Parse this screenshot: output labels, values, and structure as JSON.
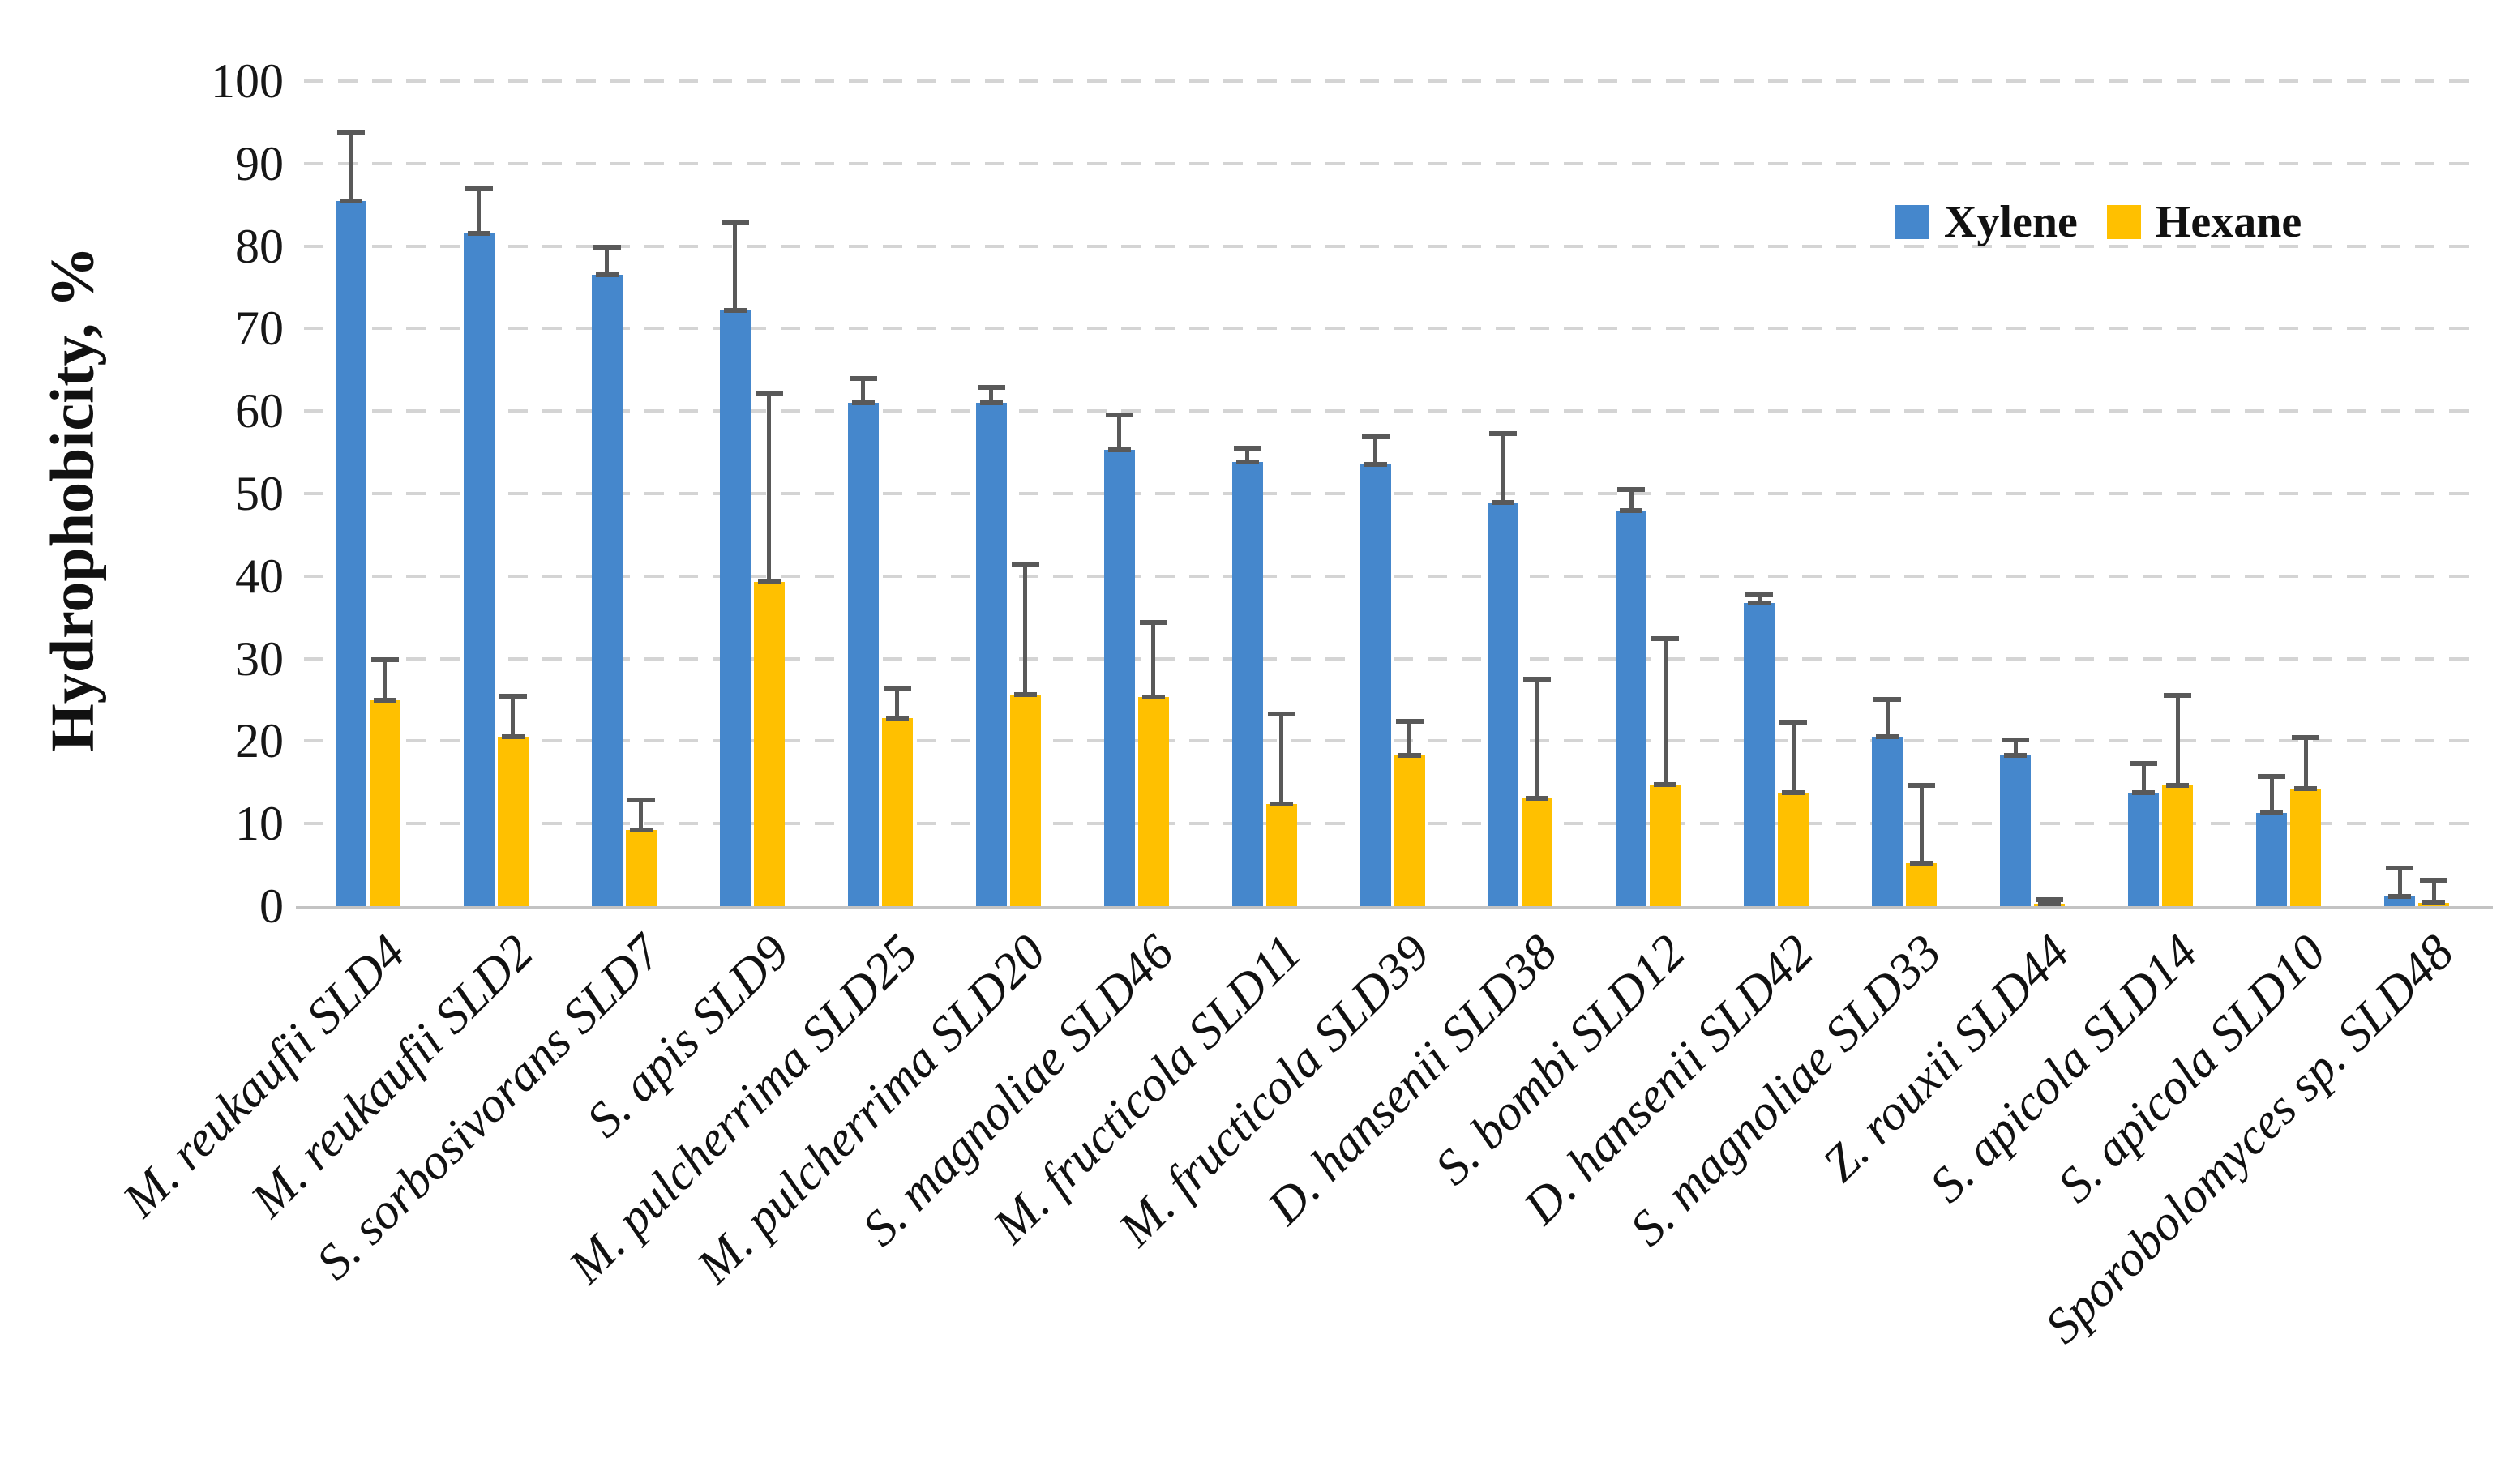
{
  "figure": {
    "background": "#ffffff",
    "gridline_color": "#d4d4d4",
    "axis_line_color": "#c3c3c3",
    "error_bar_color": "#595959",
    "text_color": "#111111"
  },
  "legend": {
    "items": [
      {
        "label": "Xylene",
        "color": "#4587CC"
      },
      {
        "label": "Hexane",
        "color": "#FFC000"
      }
    ]
  },
  "chart_data": {
    "type": "bar",
    "title": "",
    "xlabel": "",
    "ylabel": "Hydrophobicity, %",
    "ylim": [
      0,
      100
    ],
    "yticks": [
      0,
      10,
      20,
      30,
      40,
      50,
      60,
      70,
      80,
      90,
      100
    ],
    "grid": "horizontal dashed",
    "legend_position": "top-right inside plot",
    "bar_style": "grouped vertical bars with plus-direction error bars",
    "categories": [
      "M. reukaufii SLD4",
      "M. reukaufii SLD2",
      "S. sorbosivorans SLD7",
      "S. apis SLD9",
      "M. pulcherrima SLD25",
      "M. pulcherrima SLD20",
      "S. magnoliae SLD46",
      "M. fructicola SLD11",
      "M. fructicola SLD39",
      "D. hansenii SLD38",
      "S. bombi SLD12",
      "D. hansenii SLD42",
      "S. magnoliae SLD33",
      "Z. rouxii SLD44",
      "S. apicola SLD14",
      "S. apicola SLD10",
      "Sporobolomyces sp. SLD48"
    ],
    "series": [
      {
        "name": "Xylene",
        "color": "#4587CC",
        "values": [
          85.5,
          81.5,
          76.5,
          72.2,
          61.0,
          61.0,
          55.3,
          53.8,
          53.5,
          48.9,
          47.9,
          36.7,
          20.5,
          18.3,
          13.8,
          11.3,
          1.2
        ],
        "errors_plus": [
          8.4,
          5.5,
          3.5,
          10.8,
          3.0,
          2.0,
          4.3,
          1.8,
          3.5,
          8.5,
          2.7,
          1.2,
          4.6,
          1.9,
          3.6,
          4.5,
          3.5
        ]
      },
      {
        "name": "Hexane",
        "color": "#FFC000",
        "values": [
          25.0,
          20.5,
          9.2,
          39.3,
          22.8,
          25.6,
          25.3,
          12.4,
          18.3,
          13.1,
          14.7,
          13.8,
          5.2,
          0.3,
          14.6,
          14.2,
          0.4
        ],
        "errors_plus": [
          5.0,
          5.0,
          3.8,
          23.0,
          3.6,
          16.0,
          9.2,
          11.0,
          4.2,
          14.5,
          17.8,
          8.6,
          9.5,
          0.6,
          11.0,
          6.3,
          2.8
        ]
      }
    ]
  }
}
